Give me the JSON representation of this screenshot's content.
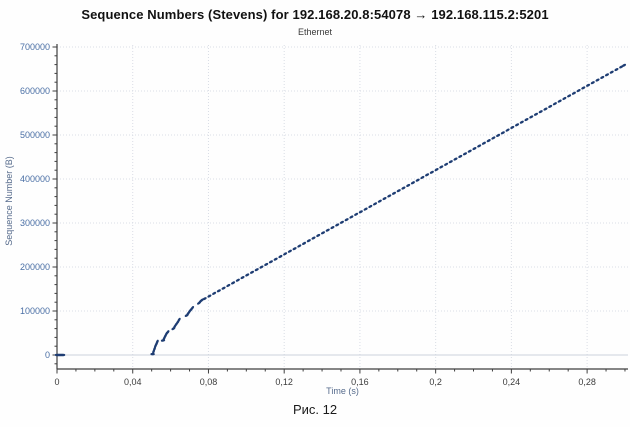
{
  "figure": {
    "title": "Sequence Numbers (Stevens) for 192.168.20.8:54078 → 192.168.115.2:5201",
    "subtitle": "Ethernet",
    "caption": "Рис. 12"
  },
  "colors": {
    "point": "#1e3d73",
    "axis": "#3f3f3f",
    "x_tick_label": "#3c3c3c",
    "y_tick_label": "#4a6fa5",
    "axis_title": "#566b8c",
    "grid": "#d9dde5",
    "grid_zero": "#ccd2dc",
    "background": "#fefefe"
  },
  "chart_data": {
    "type": "scatter",
    "title": "Sequence Numbers (Stevens) for 192.168.20.8:54078 → 192.168.115.2:5201",
    "subtitle": "Ethernet",
    "xlabel": "Time (s)",
    "ylabel": "Sequence Number (B)",
    "xlim": [
      0,
      0.3016
    ],
    "ylim": [
      -32000,
      700000
    ],
    "grid": true,
    "x_minor_step": 0.01,
    "y_minor_step": 20000,
    "x_ticks": [
      {
        "v": 0.0,
        "label": "0"
      },
      {
        "v": 0.04,
        "label": "0,04"
      },
      {
        "v": 0.08,
        "label": "0,08"
      },
      {
        "v": 0.12,
        "label": "0,12"
      },
      {
        "v": 0.16,
        "label": "0,16"
      },
      {
        "v": 0.2,
        "label": "0,2"
      },
      {
        "v": 0.24,
        "label": "0,24"
      },
      {
        "v": 0.28,
        "label": "0,28"
      }
    ],
    "y_ticks": [
      {
        "v": 0,
        "label": "0"
      },
      {
        "v": 100000,
        "label": "100000"
      },
      {
        "v": 200000,
        "label": "200000"
      },
      {
        "v": 300000,
        "label": "300000"
      },
      {
        "v": 400000,
        "label": "400000"
      },
      {
        "v": 500000,
        "label": "500000"
      },
      {
        "v": 600000,
        "label": "600000"
      },
      {
        "v": 700000,
        "label": "700000"
      }
    ],
    "points": [
      [
        0.0,
        0
      ],
      [
        0.0008,
        0
      ],
      [
        0.0016,
        0
      ],
      [
        0.0024,
        0
      ],
      [
        0.0032,
        0
      ],
      [
        0.0505,
        2000
      ],
      [
        0.051,
        8000
      ],
      [
        0.0515,
        14000
      ],
      [
        0.052,
        20000
      ],
      [
        0.0525,
        25000
      ],
      [
        0.053,
        30000
      ],
      [
        0.056,
        33000
      ],
      [
        0.0566,
        38000
      ],
      [
        0.0572,
        43000
      ],
      [
        0.0578,
        48000
      ],
      [
        0.0585,
        52000
      ],
      [
        0.0615,
        60000
      ],
      [
        0.0622,
        65000
      ],
      [
        0.063,
        70000
      ],
      [
        0.0638,
        75000
      ],
      [
        0.0645,
        80000
      ],
      [
        0.0685,
        90000
      ],
      [
        0.0693,
        94500
      ],
      [
        0.07,
        99000
      ],
      [
        0.0708,
        103000
      ],
      [
        0.0715,
        107000
      ],
      [
        0.075,
        118000
      ],
      [
        0.0757,
        121500
      ],
      [
        0.0765,
        124500
      ],
      [
        0.078,
        128000
      ],
      [
        0.0805,
        134000
      ],
      [
        0.083,
        140000
      ],
      [
        0.0855,
        146000
      ],
      [
        0.088,
        151900
      ],
      [
        0.0905,
        157900
      ],
      [
        0.093,
        163900
      ],
      [
        0.0955,
        169900
      ],
      [
        0.098,
        175900
      ],
      [
        0.1005,
        181900
      ],
      [
        0.103,
        187900
      ],
      [
        0.1055,
        193800
      ],
      [
        0.108,
        199800
      ],
      [
        0.1105,
        205800
      ],
      [
        0.113,
        211800
      ],
      [
        0.1155,
        217800
      ],
      [
        0.118,
        223800
      ],
      [
        0.1205,
        229800
      ],
      [
        0.123,
        235800
      ],
      [
        0.1255,
        241700
      ],
      [
        0.128,
        247700
      ],
      [
        0.1305,
        253700
      ],
      [
        0.133,
        259700
      ],
      [
        0.1355,
        265700
      ],
      [
        0.138,
        271700
      ],
      [
        0.1405,
        277700
      ],
      [
        0.143,
        283600
      ],
      [
        0.1455,
        289600
      ],
      [
        0.148,
        295600
      ],
      [
        0.1505,
        301600
      ],
      [
        0.153,
        307600
      ],
      [
        0.1555,
        313600
      ],
      [
        0.158,
        319600
      ],
      [
        0.1605,
        325500
      ],
      [
        0.163,
        331500
      ],
      [
        0.1655,
        337500
      ],
      [
        0.168,
        343500
      ],
      [
        0.1705,
        349500
      ],
      [
        0.173,
        355500
      ],
      [
        0.1755,
        361500
      ],
      [
        0.178,
        367500
      ],
      [
        0.1805,
        373400
      ],
      [
        0.183,
        379400
      ],
      [
        0.1855,
        385400
      ],
      [
        0.188,
        391400
      ],
      [
        0.1905,
        397400
      ],
      [
        0.193,
        403400
      ],
      [
        0.1955,
        409400
      ],
      [
        0.198,
        415300
      ],
      [
        0.2005,
        421300
      ],
      [
        0.203,
        427300
      ],
      [
        0.2055,
        433300
      ],
      [
        0.208,
        439300
      ],
      [
        0.2105,
        445300
      ],
      [
        0.213,
        451300
      ],
      [
        0.2155,
        457200
      ],
      [
        0.218,
        463200
      ],
      [
        0.2205,
        469200
      ],
      [
        0.223,
        475200
      ],
      [
        0.2255,
        481200
      ],
      [
        0.228,
        487200
      ],
      [
        0.2305,
        493200
      ],
      [
        0.233,
        499100
      ],
      [
        0.2355,
        505100
      ],
      [
        0.238,
        511100
      ],
      [
        0.2405,
        517100
      ],
      [
        0.243,
        523100
      ],
      [
        0.2455,
        529100
      ],
      [
        0.248,
        535100
      ],
      [
        0.2505,
        541100
      ],
      [
        0.253,
        547000
      ],
      [
        0.2555,
        553000
      ],
      [
        0.258,
        559000
      ],
      [
        0.2605,
        565000
      ],
      [
        0.263,
        571000
      ],
      [
        0.2655,
        577000
      ],
      [
        0.268,
        583000
      ],
      [
        0.2705,
        588900
      ],
      [
        0.273,
        594900
      ],
      [
        0.2755,
        600900
      ],
      [
        0.278,
        606900
      ],
      [
        0.2805,
        612900
      ],
      [
        0.283,
        618900
      ],
      [
        0.2855,
        624900
      ],
      [
        0.288,
        630800
      ],
      [
        0.2905,
        636800
      ],
      [
        0.293,
        642800
      ],
      [
        0.2955,
        648800
      ],
      [
        0.298,
        654700
      ],
      [
        0.2995,
        658400
      ]
    ]
  }
}
